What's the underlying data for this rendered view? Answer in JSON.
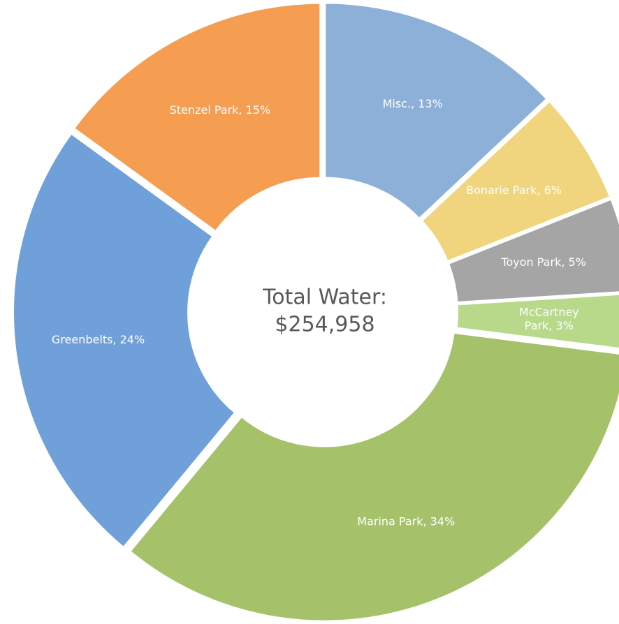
{
  "chart_data": {
    "type": "donut",
    "values": [
      13,
      6,
      5,
      3,
      34,
      24,
      15
    ],
    "value_labels": [
      "Misc., 13%",
      "Bonarie Park, 6%",
      "Toyon Park, 5%",
      "McCartney Park, 3%",
      "Marina Park, 34%",
      "Greenbelts, 24%",
      "Stenzel Park, 15%"
    ],
    "colors": [
      "#8db0d8",
      "#f0d57e",
      "#a5a5a5",
      "#b8d98a",
      "#a5c26b",
      "#6fa0d9",
      "#f59d50"
    ],
    "center_text": [
      "Total Water:",
      "$254,958"
    ]
  }
}
